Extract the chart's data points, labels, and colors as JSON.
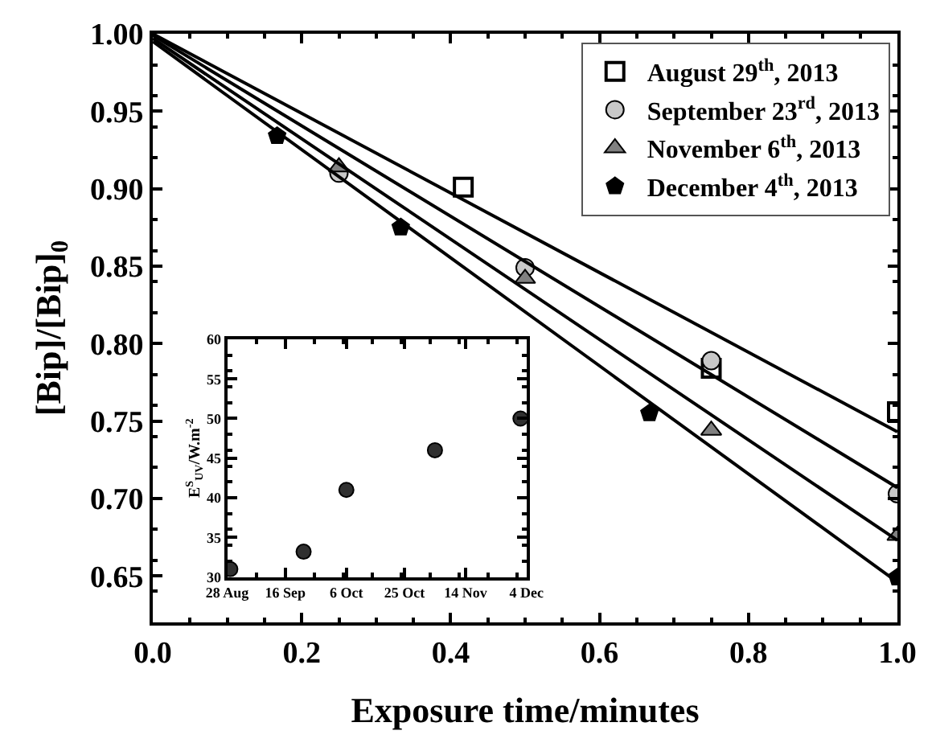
{
  "chart_data": [
    {
      "type": "scatter",
      "xlabel": "Exposure time/minutes",
      "ylabel": "[Bip]/[Bip]$_{0}$",
      "xlim": [
        0,
        1
      ],
      "xticks": [
        {
          "value": 0,
          "label": "0.0"
        },
        0.2,
        0.4,
        0.6,
        0.8,
        {
          "value": 1,
          "label": "1.0"
        }
      ],
      "ylim": [
        0.62,
        1.0
      ],
      "yticks": [
        {
          "value": 0.65,
          "label": "0.65"
        },
        {
          "value": 0.7,
          "label": "0.70"
        },
        {
          "value": 0.75,
          "label": "0.75"
        },
        {
          "value": 0.8,
          "label": "0.80"
        },
        {
          "value": 0.85,
          "label": "0.85"
        },
        {
          "value": 0.9,
          "label": "0.90"
        },
        {
          "value": 0.95,
          "label": "0.95"
        },
        {
          "value": 1.0,
          "label": "1.00"
        }
      ],
      "legend": "top right",
      "series": [
        {
          "name": "August 29$^{th}$, 2013",
          "color": "#000000",
          "marker": "square-open",
          "x": [
            0.417,
            0.75,
            1.0
          ],
          "values": [
            0.901,
            0.784,
            0.756
          ]
        },
        {
          "name": "September 23$^{rd}$, 2013",
          "color": "#c8c8c8",
          "marker": "circle",
          "x": [
            0.25,
            0.5,
            0.75,
            1.0
          ],
          "values": [
            0.91,
            0.849,
            0.789,
            0.703
          ]
        },
        {
          "name": "November 6$^{th}$, 2013",
          "color": "#808080",
          "marker": "triangle",
          "x": [
            0.25,
            0.5,
            0.75,
            1.0
          ],
          "values": [
            0.914,
            0.842,
            0.744,
            0.676
          ]
        },
        {
          "name": "December 4$^{th}$, 2013",
          "color": "#000000",
          "x": [
            0.167,
            0.333,
            0.667,
            1.0
          ],
          "values": [
            0.934,
            0.875,
            0.755,
            0.649
          ]
        },
        {
          "type": "line",
          "color": "#000000",
          "x": [
            0,
            1
          ],
          "values": [
            1.0,
            0.743
          ]
        },
        {
          "type": "line",
          "color": "#000000",
          "x": [
            0,
            1
          ],
          "values": [
            0.999,
            0.707
          ]
        },
        {
          "type": "line",
          "color": "#000000",
          "x": [
            0,
            1
          ],
          "values": [
            0.997,
            0.673
          ]
        },
        {
          "type": "line",
          "color": "#000000",
          "x": [
            0,
            1
          ],
          "values": [
            0.995,
            0.646
          ]
        }
      ]
    },
    {
      "type": "scatter",
      "ylabel": "E$^{S}$$_{UV}$/W.m$^{-2}$",
      "marker": "circle",
      "xlim": [
        "2013-08-28",
        "2013-12-04"
      ],
      "xticks": [
        {
          "value": "2013-08-28",
          "label": "28 Aug"
        },
        {
          "value": "2013-09-16",
          "label": "16 Sep"
        },
        {
          "value": "2013-10-06",
          "label": "6 Oct"
        },
        {
          "value": "2013-10-25",
          "label": "25 Oct"
        },
        {
          "value": "2013-11-14",
          "label": "14 Nov"
        },
        {
          "value": "2013-12-04",
          "label": "4 Dec"
        }
      ],
      "ylim": [
        30,
        60
      ],
      "yticks": [
        30,
        35,
        40,
        45,
        50,
        55,
        60
      ],
      "legend": false,
      "series": [
        {
          "color": "#303030",
          "x": [
            "2013-08-29",
            "2013-09-22",
            "2013-10-06",
            "2013-11-04",
            "2013-12-02"
          ],
          "values": [
            31,
            33.2,
            41,
            46,
            50
          ]
        }
      ]
    }
  ]
}
